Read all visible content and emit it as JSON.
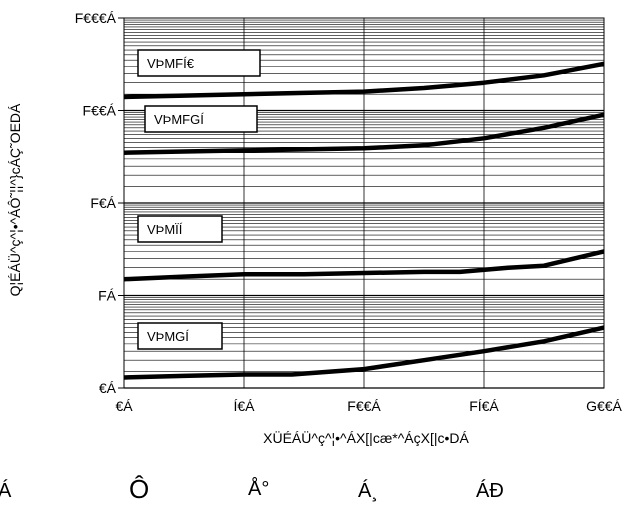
{
  "chart_data": {
    "type": "line",
    "xlabel": "XÜÉÁÜ^ç^¦•^ÁX[|cæ*^ÁçX[|c•DÁ",
    "ylabel": "Q¦ÉÁÜ^ç^¦•^ÁÔ˜¦¦^}cÁÇ˜OEDÁ",
    "x_ticks": [
      {
        "value": 0,
        "label": "€Á"
      },
      {
        "value": 50,
        "label": "Í€Á"
      },
      {
        "value": 100,
        "label": "F€€Á"
      },
      {
        "value": 150,
        "label": "FÍ€Á"
      },
      {
        "value": 200,
        "label": "G€€Á"
      }
    ],
    "y_ticks": [
      {
        "value": 0.01,
        "label": "€Á"
      },
      {
        "value": 0.1,
        "label": "FÁ"
      },
      {
        "value": 1,
        "label": "F€Á"
      },
      {
        "value": 10,
        "label": "F€€Á"
      },
      {
        "value": 100,
        "label": "F€€€Á"
      }
    ],
    "xlim": [
      0,
      200
    ],
    "ylim": [
      0.01,
      100
    ],
    "y_scale": "log",
    "grid": true,
    "series": [
      {
        "name": "VÞMFÍ€",
        "x": [
          0,
          25,
          50,
          75,
          100,
          125,
          150,
          175,
          200
        ],
        "y": [
          14,
          14.5,
          15,
          15.5,
          16,
          17.5,
          20,
          24,
          32
        ]
      },
      {
        "name": "VÞMFGÍ",
        "x": [
          0,
          25,
          50,
          75,
          100,
          125,
          150,
          175,
          200
        ],
        "y": [
          3.5,
          3.6,
          3.7,
          3.8,
          3.9,
          4.2,
          5,
          6.5,
          9
        ]
      },
      {
        "name": "VÞMÏÍ",
        "x": [
          0,
          25,
          50,
          75,
          100,
          125,
          140,
          160,
          175,
          200
        ],
        "y": [
          0.15,
          0.16,
          0.17,
          0.17,
          0.175,
          0.18,
          0.18,
          0.2,
          0.21,
          0.3
        ]
      },
      {
        "name": "VÞMGÍ",
        "x": [
          0,
          25,
          50,
          70,
          100,
          125,
          150,
          175,
          200
        ],
        "y": [
          0.013,
          0.0135,
          0.014,
          0.014,
          0.016,
          0.02,
          0.025,
          0.032,
          0.045
        ]
      }
    ]
  },
  "footer_glyphs": [
    "Á",
    "Ô",
    "Å°",
    "Á¸",
    "ÁÐ"
  ]
}
